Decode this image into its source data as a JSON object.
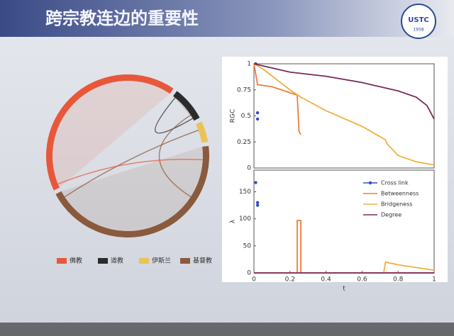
{
  "header": {
    "title": "跨宗教连边的重要性",
    "logo": "USTC",
    "logo_year": "1958"
  },
  "chart_data": [
    {
      "type": "chord",
      "categories": [
        "佛教",
        "道教",
        "伊斯兰",
        "基督教"
      ],
      "values": [
        150,
        25,
        15,
        160
      ],
      "colors": [
        "#e8573a",
        "#2b2b2b",
        "#e9c35a",
        "#8a5a3c"
      ],
      "legend": "bottom"
    },
    {
      "type": "line",
      "ylabel": "RGC",
      "xlim": [
        0,
        1
      ],
      "ylim": [
        0,
        1
      ],
      "yticks": [
        0,
        0.25,
        0.5,
        0.75,
        1
      ],
      "series": [
        {
          "color": "#3050c0",
          "marker": true,
          "x": [
            0.01,
            0.02,
            0.02
          ],
          "values": [
            1,
            0.53,
            0.47
          ]
        },
        {
          "color": "#f07a3a",
          "x": [
            0,
            0.02,
            0.1,
            0.24,
            0.25,
            0.26
          ],
          "values": [
            1,
            0.8,
            0.78,
            0.7,
            0.35,
            0.32
          ]
        },
        {
          "color": "#f0b040",
          "x": [
            0,
            0.05,
            0.2,
            0.26,
            0.4,
            0.6,
            0.73,
            0.74,
            0.8,
            0.9,
            1
          ],
          "values": [
            1,
            0.95,
            0.75,
            0.68,
            0.55,
            0.4,
            0.27,
            0.23,
            0.12,
            0.06,
            0.03
          ]
        },
        {
          "color": "#7a2a5a",
          "x": [
            0,
            0.2,
            0.4,
            0.6,
            0.8,
            0.9,
            0.96,
            1
          ],
          "values": [
            1,
            0.92,
            0.88,
            0.82,
            0.74,
            0.68,
            0.6,
            0.47
          ]
        }
      ]
    },
    {
      "type": "line",
      "ylabel": "λ",
      "xlabel": "t",
      "xlim": [
        0,
        1
      ],
      "ylim": [
        0,
        190
      ],
      "xticks": [
        0,
        0.2,
        0.4,
        0.6,
        0.8,
        1
      ],
      "yticks": [
        0,
        50,
        100,
        150
      ],
      "legend": "upper right",
      "series": [
        {
          "name": "Cross link",
          "color": "#3050c0",
          "marker": true,
          "x": [
            0.01,
            0.02,
            0.02
          ],
          "values": [
            167,
            130,
            125
          ]
        },
        {
          "name": "Betweenness",
          "color": "#f07a3a",
          "x": [
            0,
            0.24,
            0.24,
            0.26,
            0.26,
            1
          ],
          "values": [
            0,
            0,
            97,
            97,
            0,
            0
          ]
        },
        {
          "name": "Bridgeness",
          "color": "#f0b040",
          "x": [
            0,
            0.72,
            0.73,
            0.8,
            0.9,
            1
          ],
          "values": [
            0,
            0,
            20,
            15,
            10,
            5
          ]
        },
        {
          "name": "Degree",
          "color": "#7a2a5a",
          "x": [
            0,
            1
          ],
          "values": [
            0,
            0
          ]
        }
      ]
    }
  ]
}
